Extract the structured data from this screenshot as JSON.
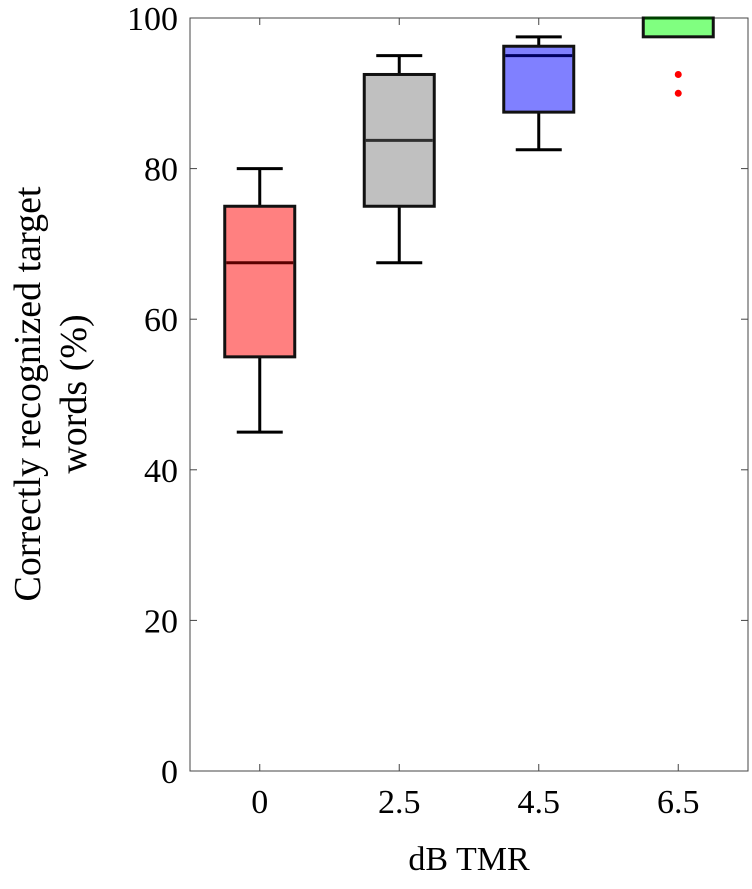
{
  "chart_data": {
    "type": "box",
    "title": "",
    "xlabel": "dB TMR",
    "ylabel_lines": [
      "Correctly recognized target",
      "words (%)"
    ],
    "ylim": [
      0,
      100
    ],
    "yticks": [
      0,
      20,
      40,
      60,
      80,
      100
    ],
    "grid": false,
    "categories": [
      "0",
      "2.5",
      "4.5",
      "6.5"
    ],
    "boxes": [
      {
        "category": "0",
        "whisker_low": 45,
        "q1": 55,
        "median": 67.5,
        "q3": 75,
        "whisker_high": 80,
        "outliers": [],
        "fill": "#ff8080",
        "edge": "#5a0000"
      },
      {
        "category": "2.5",
        "whisker_low": 67.5,
        "q1": 75,
        "median": 83.75,
        "q3": 92.5,
        "whisker_high": 95,
        "outliers": [],
        "fill": "#c0c0c0",
        "edge": "#303030"
      },
      {
        "category": "4.5",
        "whisker_low": 82.5,
        "q1": 87.5,
        "median": 95,
        "q3": 96.25,
        "whisker_high": 97.5,
        "outliers": [],
        "fill": "#8080ff",
        "edge": "#000060"
      },
      {
        "category": "6.5",
        "whisker_low": 97.5,
        "q1": 97.5,
        "median": 100,
        "q3": 100,
        "whisker_high": 100,
        "outliers": [
          92.5,
          90
        ],
        "fill": "#80ff80",
        "edge": "#004000"
      }
    ],
    "outlier_color": "#ff0000"
  }
}
